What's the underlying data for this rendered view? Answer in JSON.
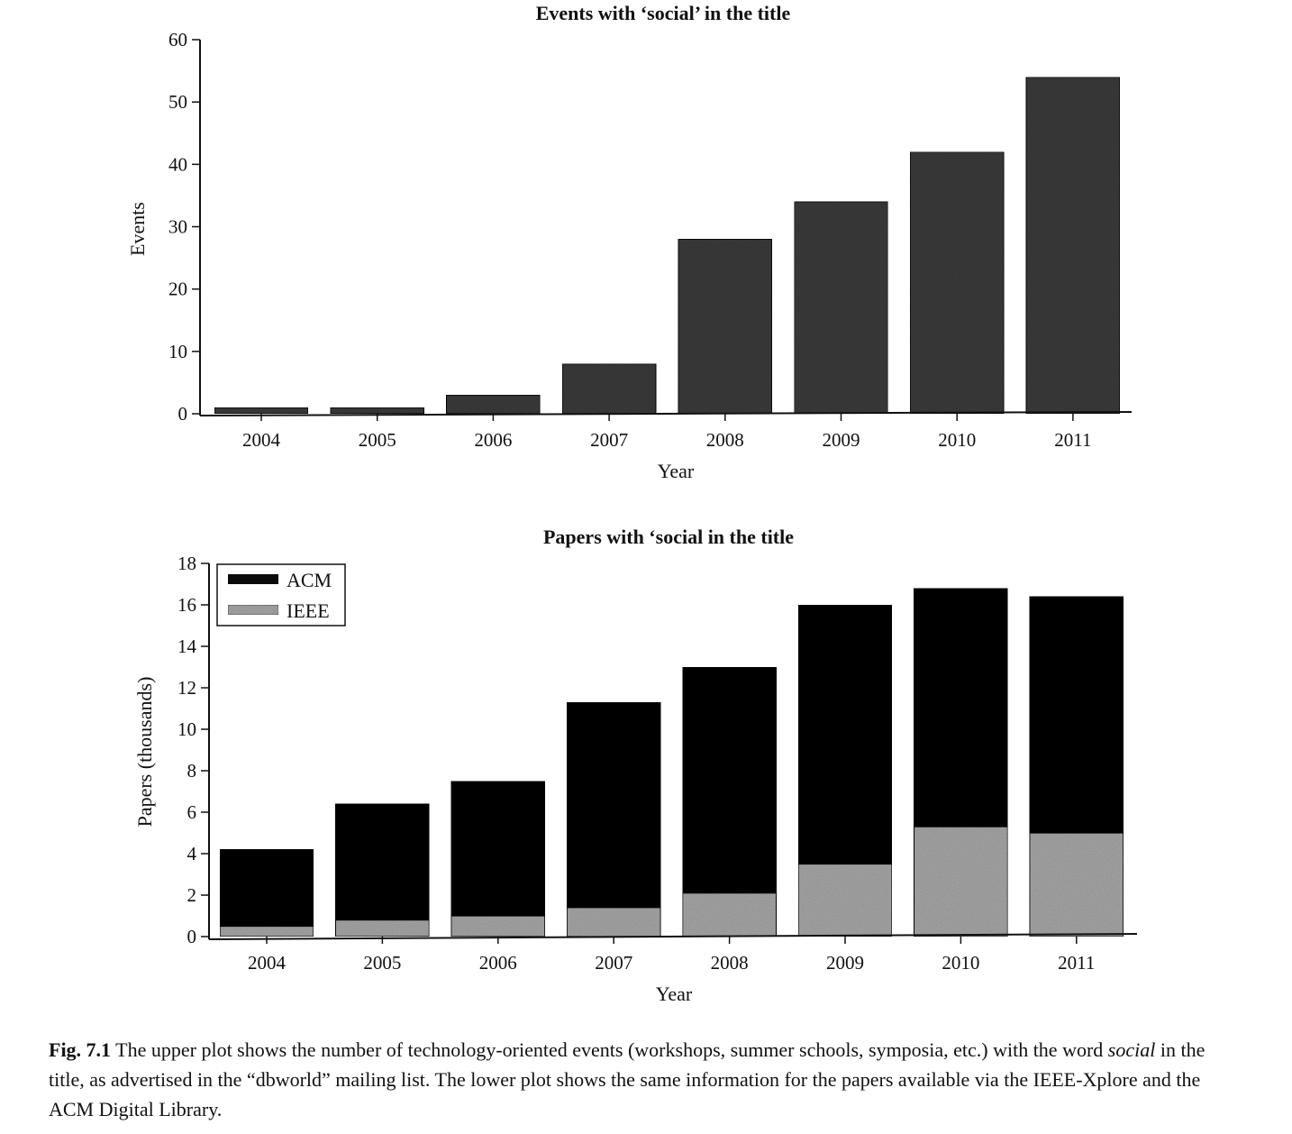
{
  "colors": {
    "events_bar": "#3c3c3c",
    "acm": "#0b0b0b",
    "ieee": "#a9a9a9",
    "axis": "#111111"
  },
  "chart_data": [
    {
      "type": "bar",
      "title": "Events with ‘social’ in the title",
      "xlabel": "Year",
      "ylabel": "Events",
      "categories": [
        "2004",
        "2005",
        "2006",
        "2007",
        "2008",
        "2009",
        "2010",
        "2011"
      ],
      "values": [
        1,
        1,
        3,
        8,
        28,
        34,
        42,
        54
      ],
      "ylim": [
        0,
        60
      ],
      "yticks": [
        0,
        10,
        20,
        30,
        40,
        50,
        60
      ],
      "grid": false
    },
    {
      "type": "bar",
      "stacked": true,
      "title": "Papers with ‘social in the title",
      "xlabel": "Year",
      "ylabel": "Papers (thousands)",
      "categories": [
        "2004",
        "2005",
        "2006",
        "2007",
        "2008",
        "2009",
        "2010",
        "2011"
      ],
      "ylim": [
        0,
        18
      ],
      "yticks": [
        0,
        2,
        4,
        6,
        8,
        10,
        12,
        14,
        16,
        18
      ],
      "legend": "top-left",
      "grid": false,
      "series": [
        {
          "name": "IEEE",
          "values": [
            0.5,
            0.8,
            1.0,
            1.4,
            2.1,
            3.5,
            5.3,
            5.0
          ]
        },
        {
          "name": "ACM",
          "values": [
            3.7,
            5.6,
            6.5,
            9.9,
            10.9,
            12.5,
            11.5,
            11.4
          ]
        }
      ]
    }
  ],
  "caption": {
    "label": "Fig. 7.1",
    "part1": " The upper plot shows the number of technology-oriented events (workshops, summer schools, symposia, etc.) with the word ",
    "emph": "social",
    "part2": " in the title, as advertised in the “dbworld” mailing list. The lower plot shows the same information for the papers available via the IEEE-Xplore and the ACM Digital Library."
  }
}
